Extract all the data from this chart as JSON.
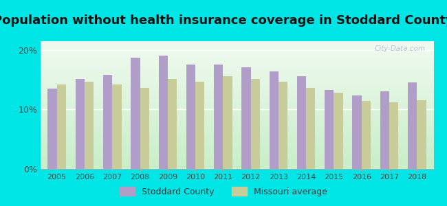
{
  "title": "Population without health insurance coverage in Stoddard County",
  "years": [
    2005,
    2006,
    2007,
    2008,
    2009,
    2010,
    2011,
    2012,
    2013,
    2014,
    2015,
    2016,
    2017,
    2018
  ],
  "stoddard": [
    13.5,
    15.2,
    15.8,
    18.7,
    19.1,
    17.6,
    17.6,
    17.1,
    16.4,
    15.6,
    13.3,
    12.4,
    13.1,
    14.6
  ],
  "missouri": [
    14.2,
    14.7,
    14.2,
    13.6,
    15.2,
    14.7,
    15.6,
    15.1,
    14.7,
    13.6,
    12.8,
    11.4,
    11.2,
    11.6
  ],
  "stoddard_color": "#b09ec9",
  "missouri_color": "#c8cc9a",
  "background_color": "#00e5e5",
  "plot_bg_top": "#e8f5e8",
  "plot_bg_bottom": "#d0f0d0",
  "title_fontsize": 13,
  "ylabel_ticks": [
    "0%",
    "10%",
    "20%"
  ],
  "ytick_vals": [
    0,
    10,
    20
  ],
  "ylim": [
    0,
    21.5
  ],
  "legend_stoddard": "Stoddard County",
  "legend_missouri": "Missouri average",
  "watermark": "City-Data.com"
}
